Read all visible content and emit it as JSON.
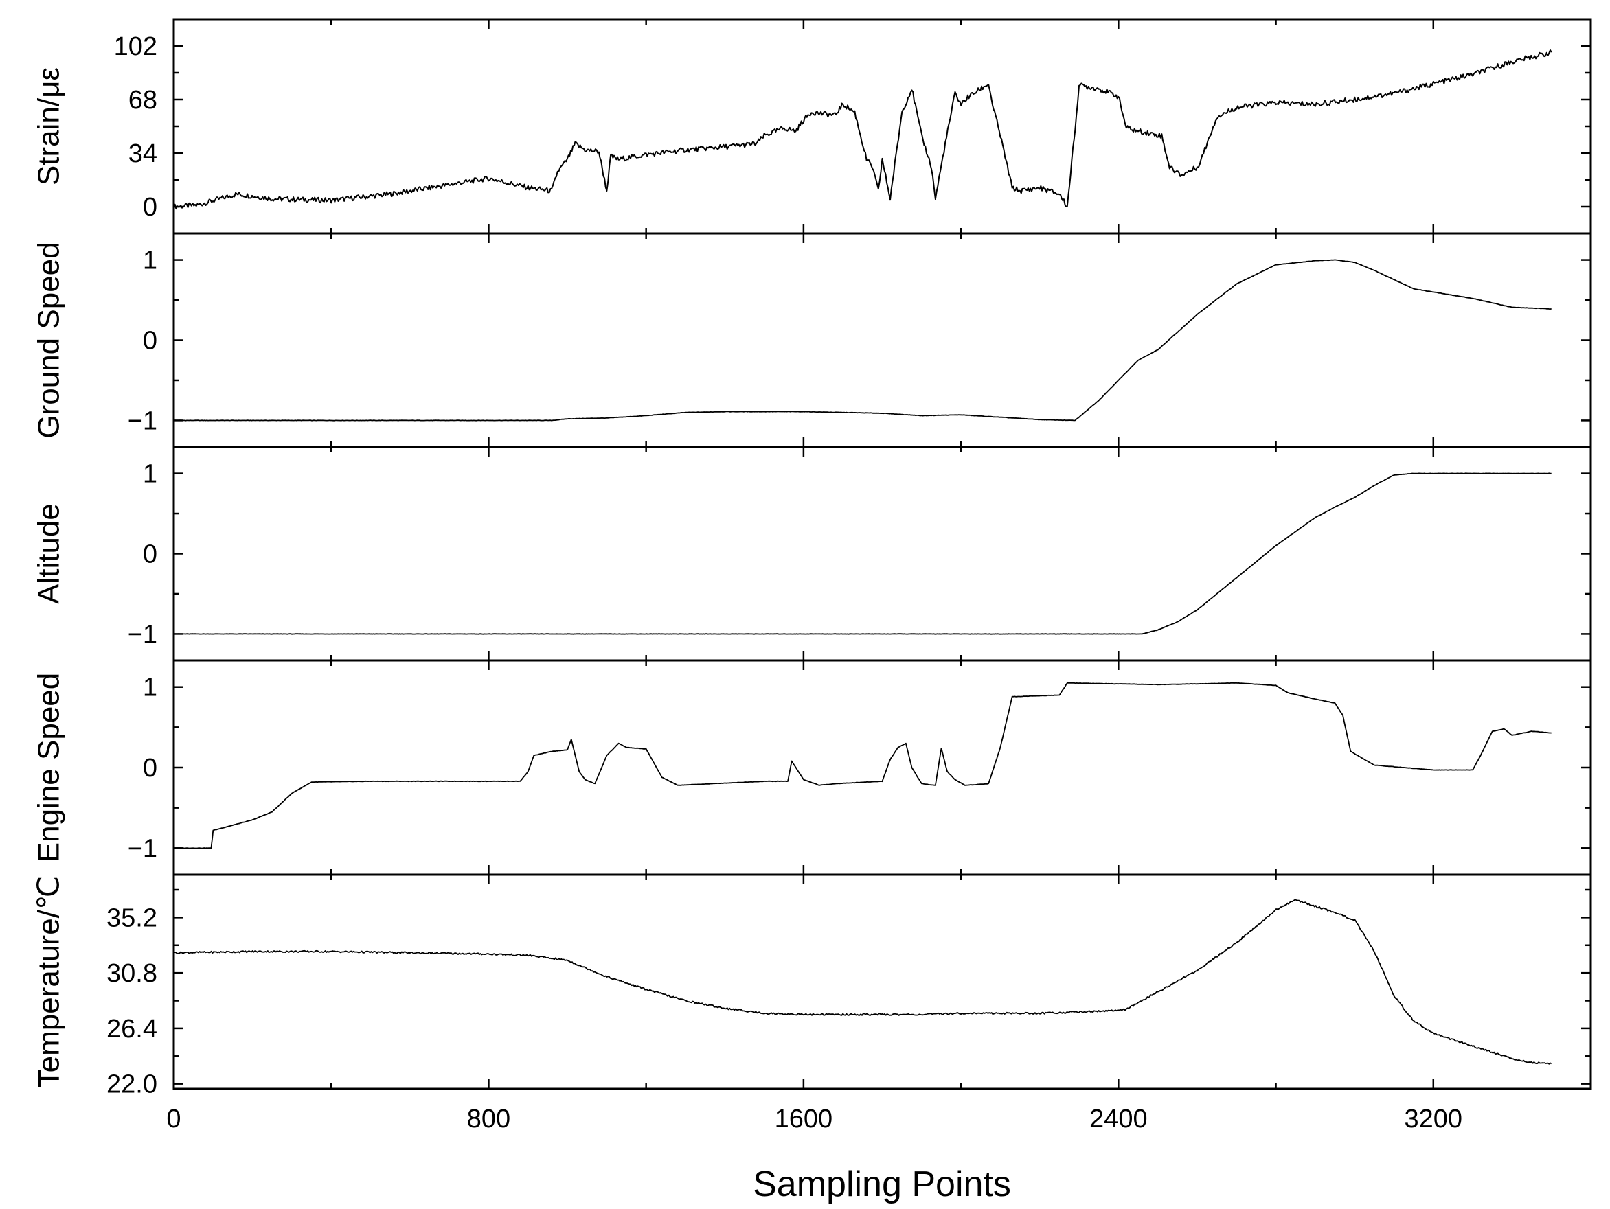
{
  "x_axis": {
    "label": "Sampling Points",
    "ticks": [
      0,
      800,
      1600,
      2400,
      3200
    ],
    "range": [
      0,
      3600
    ]
  },
  "chart_data": [
    {
      "type": "line",
      "ylabel": "Strain/με",
      "yticks": [
        "0",
        "34",
        "68",
        "102"
      ],
      "ylim": [
        -17,
        119
      ],
      "xlim": [
        0,
        3600
      ],
      "color": "#000000",
      "series": [
        {
          "x": [
            0,
            60,
            160,
            250,
            400,
            550,
            700,
            800,
            900,
            960,
            975,
            1000,
            1020,
            1045,
            1080,
            1100,
            1110,
            1130,
            1200,
            1300,
            1400,
            1480,
            1500,
            1550,
            1580,
            1600,
            1620,
            1680,
            1700,
            1730,
            1760,
            1775,
            1790,
            1800,
            1820,
            1850,
            1875,
            1900,
            1925,
            1935,
            1960,
            1985,
            2000,
            2020,
            2070,
            2080,
            2100,
            2130,
            2150,
            2200,
            2250,
            2270,
            2290,
            2300,
            2350,
            2400,
            2420,
            2450,
            2510,
            2530,
            2560,
            2600,
            2610,
            2650,
            2700,
            2800,
            2900,
            3000,
            3100,
            3200,
            3300,
            3400,
            3500
          ],
          "y": [
            0,
            1,
            8,
            5,
            4,
            8,
            14,
            18,
            12,
            10,
            22,
            30,
            40,
            36,
            35,
            10,
            32,
            30,
            33,
            36,
            38,
            40,
            45,
            50,
            48,
            55,
            60,
            58,
            65,
            60,
            30,
            25,
            10,
            30,
            5,
            60,
            75,
            45,
            25,
            5,
            40,
            72,
            65,
            70,
            78,
            65,
            45,
            12,
            10,
            12,
            8,
            0,
            50,
            77,
            75,
            70,
            50,
            48,
            45,
            25,
            20,
            25,
            30,
            57,
            63,
            66,
            65,
            68,
            72,
            78,
            84,
            92,
            98
          ]
        }
      ]
    },
    {
      "type": "line",
      "ylabel": "Ground Speed",
      "yticks": [
        "−1",
        "0",
        "1"
      ],
      "ylim": [
        -1.33,
        1.33
      ],
      "xlim": [
        0,
        3600
      ],
      "color": "#000000",
      "series": [
        {
          "x": [
            0,
            600,
            960,
            1000,
            1100,
            1200,
            1300,
            1400,
            1500,
            1600,
            1700,
            1800,
            1900,
            2000,
            2100,
            2200,
            2290,
            2350,
            2450,
            2500,
            2600,
            2700,
            2800,
            2900,
            2950,
            3000,
            3050,
            3150,
            3300,
            3400,
            3500
          ],
          "y": [
            -1,
            -1,
            -1,
            -0.98,
            -0.97,
            -0.94,
            -0.9,
            -0.89,
            -0.89,
            -0.89,
            -0.9,
            -0.91,
            -0.94,
            -0.93,
            -0.96,
            -0.99,
            -1,
            -0.75,
            -0.25,
            -0.12,
            0.32,
            0.7,
            0.94,
            0.99,
            1.0,
            0.97,
            0.87,
            0.64,
            0.52,
            0.41,
            0.39
          ]
        }
      ]
    },
    {
      "type": "line",
      "ylabel": "Altitude",
      "yticks": [
        "−1",
        "0",
        "1"
      ],
      "ylim": [
        -1.33,
        1.33
      ],
      "xlim": [
        0,
        3600
      ],
      "color": "#000000",
      "series": [
        {
          "x": [
            0,
            1000,
            2000,
            2460,
            2500,
            2550,
            2600,
            2700,
            2800,
            2900,
            2950,
            3000,
            3050,
            3100,
            3150,
            3300,
            3500
          ],
          "y": [
            -1,
            -1,
            -1,
            -1,
            -0.95,
            -0.85,
            -0.7,
            -0.3,
            0.1,
            0.45,
            0.58,
            0.7,
            0.85,
            0.98,
            1.0,
            1.0,
            1.0
          ]
        }
      ]
    },
    {
      "type": "line",
      "ylabel": "Engine Speed",
      "yticks": [
        "−1",
        "0",
        "1"
      ],
      "ylim": [
        -1.33,
        1.33
      ],
      "xlim": [
        0,
        3600
      ],
      "color": "#000000",
      "series": [
        {
          "x": [
            0,
            95,
            100,
            200,
            250,
            300,
            350,
            500,
            800,
            880,
            900,
            915,
            960,
            1000,
            1010,
            1030,
            1045,
            1070,
            1100,
            1130,
            1150,
            1200,
            1215,
            1240,
            1280,
            1500,
            1560,
            1570,
            1600,
            1640,
            1680,
            1800,
            1820,
            1840,
            1860,
            1875,
            1900,
            1935,
            1950,
            1965,
            1985,
            2010,
            2070,
            2100,
            2130,
            2250,
            2270,
            2500,
            2700,
            2800,
            2830,
            2900,
            2950,
            2970,
            2990,
            3050,
            3200,
            3300,
            3320,
            3350,
            3380,
            3400,
            3450,
            3500
          ],
          "y": [
            -1,
            -1,
            -0.78,
            -0.65,
            -0.55,
            -0.32,
            -0.18,
            -0.17,
            -0.17,
            -0.17,
            -0.05,
            0.15,
            0.2,
            0.22,
            0.35,
            -0.05,
            -0.15,
            -0.2,
            0.15,
            0.3,
            0.25,
            0.23,
            0.1,
            -0.12,
            -0.22,
            -0.17,
            -0.17,
            0.08,
            -0.15,
            -0.22,
            -0.2,
            -0.17,
            0.1,
            0.25,
            0.3,
            0.0,
            -0.2,
            -0.22,
            0.24,
            -0.05,
            -0.15,
            -0.22,
            -0.2,
            0.25,
            0.88,
            0.9,
            1.05,
            1.03,
            1.05,
            1.02,
            0.93,
            0.85,
            0.8,
            0.65,
            0.2,
            0.03,
            -0.03,
            -0.03,
            0.15,
            0.45,
            0.48,
            0.4,
            0.45,
            0.43
          ]
        }
      ]
    },
    {
      "type": "line",
      "ylabel": "Temperature/℃",
      "yticks": [
        "22.0",
        "26.4",
        "30.8",
        "35.2"
      ],
      "ylim": [
        21.6,
        38.6
      ],
      "xlim": [
        0,
        3600
      ],
      "color": "#000000",
      "series": [
        {
          "x": [
            0,
            200,
            400,
            600,
            800,
            900,
            1000,
            1100,
            1200,
            1300,
            1400,
            1500,
            1600,
            1700,
            1800,
            1900,
            2000,
            2200,
            2380,
            2420,
            2500,
            2600,
            2700,
            2800,
            2850,
            2950,
            3000,
            3050,
            3100,
            3150,
            3200,
            3300,
            3400,
            3450,
            3500
          ],
          "y": [
            32.4,
            32.5,
            32.5,
            32.4,
            32.3,
            32.2,
            31.8,
            30.5,
            29.5,
            28.6,
            28.0,
            27.6,
            27.5,
            27.5,
            27.5,
            27.5,
            27.6,
            27.6,
            27.8,
            27.9,
            29.3,
            31.0,
            33.2,
            35.8,
            36.6,
            35.6,
            35.0,
            32.5,
            29.0,
            27.0,
            26.0,
            25.0,
            24.0,
            23.7,
            23.6
          ]
        }
      ]
    }
  ]
}
